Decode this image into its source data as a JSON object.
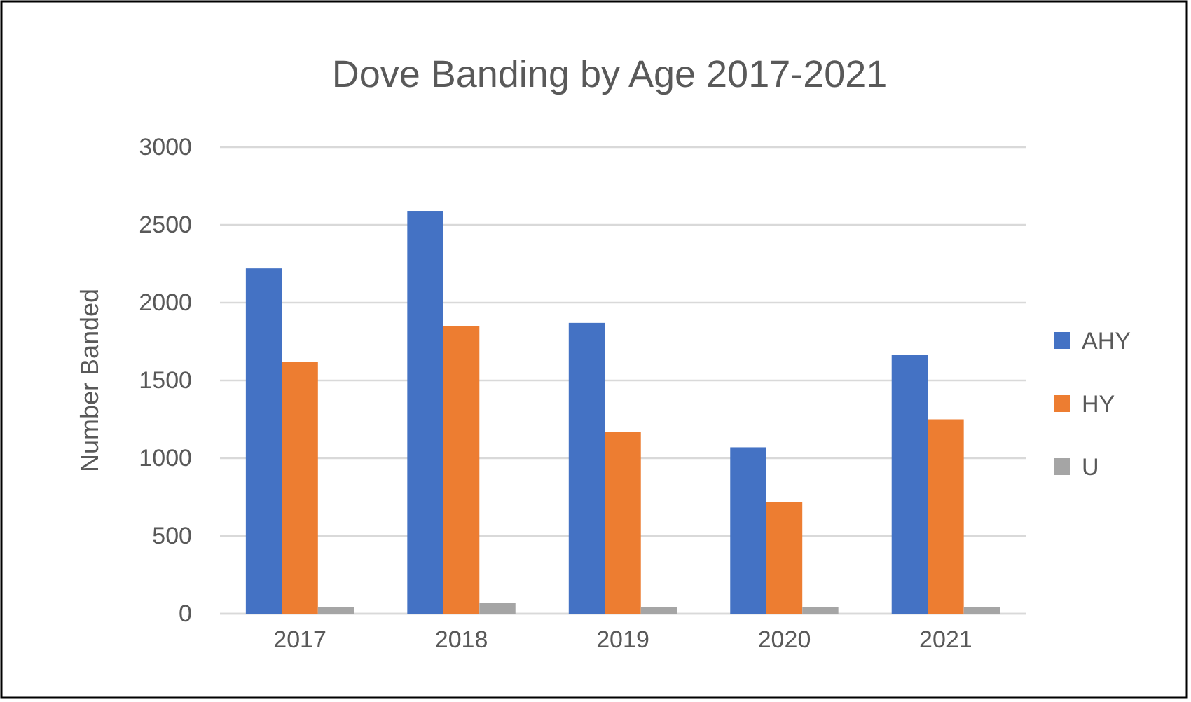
{
  "chart_data": {
    "type": "bar",
    "title": "Dove Banding by Age 2017-2021",
    "ylabel": "Number Banded",
    "categories": [
      "2017",
      "2018",
      "2019",
      "2020",
      "2021"
    ],
    "series": [
      {
        "name": "AHY",
        "color": "#4472c4",
        "values": [
          2220,
          2590,
          1870,
          1070,
          1665
        ]
      },
      {
        "name": "HY",
        "color": "#ed7d31",
        "values": [
          1620,
          1850,
          1170,
          720,
          1250
        ]
      },
      {
        "name": "U",
        "color": "#a5a5a5",
        "values": [
          45,
          70,
          45,
          45,
          45
        ]
      }
    ],
    "ylim": [
      0,
      3000
    ],
    "yticks": [
      0,
      500,
      1000,
      1500,
      2000,
      2500,
      3000
    ],
    "grid": "y",
    "legend": "right"
  }
}
